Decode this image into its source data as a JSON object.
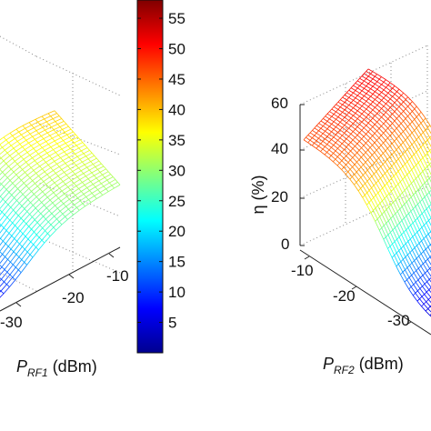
{
  "chart_data": [
    {
      "type": "surface",
      "panel": "left",
      "xlabel_main": "P",
      "xlabel_sub": "RF1",
      "xlabel_unit": " (dBm)",
      "x_ticks": [
        "-30",
        "-20",
        "-10"
      ],
      "z_visible_range": [
        0,
        40
      ],
      "colormap": "jet"
    },
    {
      "type": "colorbar",
      "ticks": [
        "5",
        "10",
        "15",
        "20",
        "25",
        "30",
        "35",
        "40",
        "45",
        "50",
        "55"
      ],
      "range": [
        0,
        58
      ],
      "colormap": "jet"
    },
    {
      "type": "surface",
      "panel": "right",
      "zlabel": "η (%)",
      "z_ticks": [
        "0",
        "20",
        "40",
        "60"
      ],
      "xlabel_main": "P",
      "xlabel_sub": "RF2",
      "xlabel_unit": " (dBm)",
      "x_ticks": [
        "-10",
        "-20",
        "-30"
      ],
      "z_visible_range": [
        0,
        52
      ],
      "colormap": "jet"
    }
  ]
}
